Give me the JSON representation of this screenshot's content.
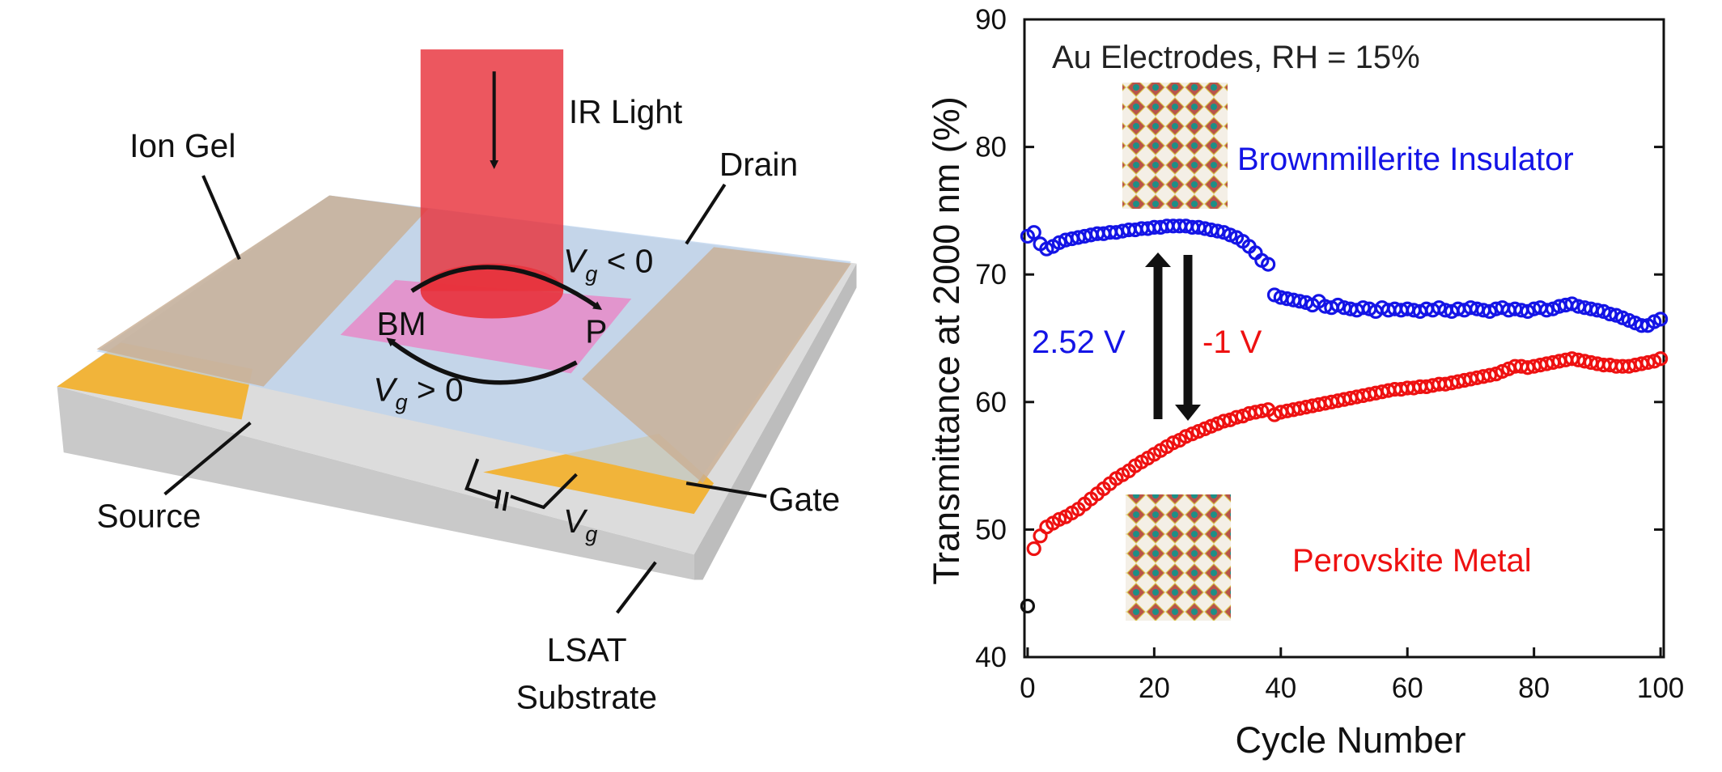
{
  "diagram": {
    "labels": {
      "ir_light": "IR Light",
      "ion_gel": "Ion Gel",
      "drain": "Drain",
      "bm": "BM",
      "p": "P",
      "source": "Source",
      "gate": "Gate",
      "lsat": "LSAT",
      "substrate": "Substrate",
      "vg_neg": {
        "main": "V",
        "sub": "g",
        "rest": " < 0"
      },
      "vg_pos": {
        "main": "V",
        "sub": "g",
        "rest": " > 0"
      },
      "vg": {
        "main": "V",
        "sub": "g"
      }
    }
  },
  "chart_data": {
    "type": "scatter",
    "xlabel": "Cycle Number",
    "ylabel": "Transmittance at 2000 nm (%)",
    "xlim": [
      -0.5,
      100.5
    ],
    "ylim": [
      40,
      90
    ],
    "xticks": [
      0,
      20,
      40,
      60,
      80,
      100
    ],
    "yticks": [
      40,
      50,
      60,
      70,
      80,
      90
    ],
    "annotations": [
      {
        "text": "Au Electrodes, RH = 15%",
        "color": "#222222"
      },
      {
        "text": "Brownmillerite Insulator",
        "color": "#1414e6"
      },
      {
        "text": "Perovskite Metal",
        "color": "#ee1111"
      },
      {
        "text": "2.52 V",
        "color": "#1414e6"
      },
      {
        "text": "-1 V",
        "color": "#ee1111"
      }
    ],
    "x": [
      0,
      1,
      2,
      3,
      4,
      5,
      6,
      7,
      8,
      9,
      10,
      11,
      12,
      13,
      14,
      15,
      16,
      17,
      18,
      19,
      20,
      21,
      22,
      23,
      24,
      25,
      26,
      27,
      28,
      29,
      30,
      31,
      32,
      33,
      34,
      35,
      36,
      37,
      38,
      39,
      40,
      41,
      42,
      43,
      44,
      45,
      46,
      47,
      48,
      49,
      50,
      51,
      52,
      53,
      54,
      55,
      56,
      57,
      58,
      59,
      60,
      61,
      62,
      63,
      64,
      65,
      66,
      67,
      68,
      69,
      70,
      71,
      72,
      73,
      74,
      75,
      76,
      77,
      78,
      79,
      80,
      81,
      82,
      83,
      84,
      85,
      86,
      87,
      88,
      89,
      90,
      91,
      92,
      93,
      94,
      95,
      96,
      97,
      98,
      99,
      100
    ],
    "series": [
      {
        "color": "#1414e6",
        "values": [
          73.0,
          73.3,
          72.4,
          72.0,
          72.2,
          72.5,
          72.7,
          72.8,
          72.9,
          73.0,
          73.1,
          73.2,
          73.2,
          73.3,
          73.3,
          73.4,
          73.5,
          73.5,
          73.6,
          73.6,
          73.7,
          73.7,
          73.8,
          73.8,
          73.8,
          73.8,
          73.7,
          73.7,
          73.6,
          73.5,
          73.4,
          73.3,
          73.1,
          72.9,
          72.6,
          72.2,
          71.7,
          71.1,
          70.8,
          68.4,
          68.2,
          68.1,
          68.0,
          67.9,
          67.8,
          67.6,
          67.9,
          67.5,
          67.4,
          67.6,
          67.4,
          67.3,
          67.2,
          67.4,
          67.3,
          67.1,
          67.4,
          67.2,
          67.3,
          67.2,
          67.3,
          67.2,
          67.1,
          67.3,
          67.2,
          67.4,
          67.2,
          67.1,
          67.3,
          67.2,
          67.4,
          67.3,
          67.2,
          67.1,
          67.3,
          67.4,
          67.2,
          67.3,
          67.2,
          67.1,
          67.3,
          67.4,
          67.2,
          67.3,
          67.5,
          67.6,
          67.7,
          67.5,
          67.4,
          67.3,
          67.2,
          67.1,
          66.9,
          66.8,
          66.6,
          66.4,
          66.2,
          66.0,
          66.0,
          66.3,
          66.5
        ]
      },
      {
        "color": "#ee1111",
        "values": [
          null,
          48.5,
          49.5,
          50.2,
          50.5,
          50.8,
          51.0,
          51.3,
          51.6,
          52.0,
          52.4,
          52.8,
          53.2,
          53.6,
          54.0,
          54.3,
          54.6,
          55.0,
          55.3,
          55.6,
          55.9,
          56.2,
          56.5,
          56.8,
          57.0,
          57.3,
          57.5,
          57.7,
          57.9,
          58.1,
          58.3,
          58.5,
          58.6,
          58.8,
          58.9,
          59.1,
          59.2,
          59.3,
          59.4,
          59.0,
          59.2,
          59.3,
          59.4,
          59.5,
          59.6,
          59.7,
          59.8,
          59.9,
          60.0,
          60.1,
          60.2,
          60.3,
          60.4,
          60.5,
          60.6,
          60.7,
          60.8,
          60.9,
          61.0,
          61.0,
          61.1,
          61.1,
          61.2,
          61.2,
          61.3,
          61.4,
          61.4,
          61.5,
          61.6,
          61.7,
          61.8,
          61.9,
          62.0,
          62.1,
          62.2,
          62.4,
          62.6,
          62.8,
          62.8,
          62.7,
          62.8,
          62.9,
          63.0,
          63.1,
          63.2,
          63.3,
          63.4,
          63.3,
          63.2,
          63.1,
          63.0,
          62.9,
          62.9,
          62.8,
          62.8,
          62.8,
          62.9,
          63.0,
          63.1,
          63.2,
          63.4
        ]
      },
      {
        "color": "#111111",
        "x": [
          0
        ],
        "values": [
          44
        ]
      }
    ]
  }
}
